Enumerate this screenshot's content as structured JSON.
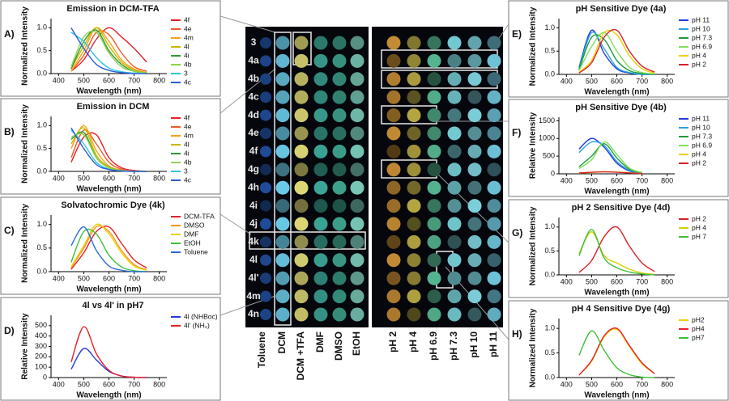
{
  "chart_data": [
    {
      "type": "line",
      "label": "A)",
      "title": "Emission in DCM-TFA",
      "xlabel": "Wavelength (nm)",
      "ylabel": "Normalized Intensity",
      "x": [
        400,
        450,
        500,
        550,
        600,
        650,
        700,
        750,
        800
      ],
      "xlim": [
        370,
        830
      ],
      "xticks": [
        400,
        500,
        600,
        700,
        800
      ],
      "ylim": [
        0,
        1.2
      ],
      "yticks": [
        {
          "value": 0,
          "label": "0.0"
        },
        0.5,
        {
          "value": 1,
          "label": "1.0"
        }
      ],
      "series": [
        {
          "name": "4f",
          "color": "#e8202a",
          "values": [
            null,
            0.05,
            0.3,
            0.75,
            1.0,
            0.8,
            0.55,
            0.25,
            null
          ]
        },
        {
          "name": "4e",
          "color": "#f05a28",
          "values": [
            null,
            0.05,
            0.4,
            0.9,
            0.85,
            0.45,
            0.15,
            0.05,
            null
          ]
        },
        {
          "name": "4m",
          "color": "#f7a21b",
          "values": [
            null,
            0.05,
            0.5,
            1.0,
            0.7,
            0.3,
            0.1,
            0.02,
            null
          ]
        },
        {
          "name": "4l",
          "color": "#c9b800",
          "values": [
            null,
            0.1,
            0.6,
            1.0,
            0.6,
            0.25,
            0.08,
            0.02,
            null
          ]
        },
        {
          "name": "4i",
          "color": "#2f9b2f",
          "values": [
            null,
            0.1,
            0.7,
            0.95,
            0.5,
            0.2,
            0.05,
            0.01,
            null
          ]
        },
        {
          "name": "4b",
          "color": "#8fd14f",
          "values": [
            null,
            0.15,
            0.8,
            0.9,
            0.45,
            0.15,
            0.05,
            0.01,
            null
          ]
        },
        {
          "name": "3",
          "color": "#2ac6d8",
          "values": [
            null,
            0.9,
            0.7,
            0.35,
            0.12,
            0.04,
            0.01,
            0,
            null
          ]
        },
        {
          "name": "4c",
          "color": "#2a5bd7",
          "values": [
            null,
            1.0,
            0.55,
            0.2,
            0.07,
            0.02,
            0,
            0,
            null
          ]
        }
      ]
    },
    {
      "type": "line",
      "label": "B)",
      "title": "Emission in DCM",
      "xlabel": "Wavelength (nm)",
      "ylabel": "Normalized Intensity",
      "x": [
        400,
        450,
        500,
        550,
        600,
        650,
        700,
        750,
        800
      ],
      "xlim": [
        370,
        830
      ],
      "xticks": [
        400,
        500,
        600,
        700,
        800
      ],
      "ylim": [
        0,
        1.2
      ],
      "yticks": [
        {
          "value": 0,
          "label": "0.0"
        },
        0.5,
        {
          "value": 1,
          "label": "1.0"
        }
      ],
      "series": [
        {
          "name": "4f",
          "color": "#e8202a",
          "values": [
            null,
            0.2,
            0.75,
            0.8,
            0.3,
            0.08,
            0.02,
            0,
            null
          ]
        },
        {
          "name": "4e",
          "color": "#f05a28",
          "values": [
            null,
            0.3,
            0.9,
            0.6,
            0.2,
            0.05,
            0.01,
            0,
            null
          ]
        },
        {
          "name": "4m",
          "color": "#f7a21b",
          "values": [
            null,
            0.5,
            1.0,
            0.45,
            0.12,
            0.03,
            0,
            0,
            null
          ]
        },
        {
          "name": "4l",
          "color": "#c9b800",
          "values": [
            null,
            0.6,
            0.95,
            0.35,
            0.1,
            0.02,
            0,
            0,
            null
          ]
        },
        {
          "name": "4i",
          "color": "#2f9b2f",
          "values": [
            null,
            0.7,
            0.85,
            0.3,
            0.08,
            0.02,
            0,
            0,
            null
          ]
        },
        {
          "name": "4b",
          "color": "#8fd14f",
          "values": [
            null,
            0.75,
            0.8,
            0.3,
            0.08,
            0.02,
            0,
            0,
            null
          ]
        },
        {
          "name": "3",
          "color": "#2ac6d8",
          "values": [
            null,
            0.9,
            0.6,
            0.2,
            0.05,
            0.01,
            0,
            0,
            null
          ]
        },
        {
          "name": "4c",
          "color": "#2a5bd7",
          "values": [
            null,
            0.95,
            0.5,
            0.15,
            0.04,
            0.01,
            0,
            0,
            null
          ]
        }
      ]
    },
    {
      "type": "line",
      "label": "C)",
      "title": "Solvatochromic Dye (4k)",
      "xlabel": "Wavelength (nm)",
      "ylabel": "Normalized Intensity",
      "x": [
        400,
        450,
        500,
        550,
        600,
        650,
        700,
        750,
        800
      ],
      "xlim": [
        370,
        830
      ],
      "xticks": [
        400,
        500,
        600,
        700,
        800
      ],
      "ylim": [
        0,
        1.2
      ],
      "yticks": [
        {
          "value": 0,
          "label": "0.0"
        },
        0.5,
        {
          "value": 1,
          "label": "1.0"
        }
      ],
      "series": [
        {
          "name": "DCM-TFA",
          "color": "#e8202a",
          "values": [
            null,
            0.05,
            0.4,
            0.85,
            0.95,
            0.6,
            0.25,
            0.08,
            null
          ]
        },
        {
          "name": "DMSO",
          "color": "#f7931e",
          "values": [
            null,
            0.08,
            0.5,
            0.95,
            0.85,
            0.45,
            0.15,
            0.04,
            null
          ]
        },
        {
          "name": "DMF",
          "color": "#e6d200",
          "values": [
            null,
            0.1,
            0.55,
            1.0,
            0.8,
            0.4,
            0.12,
            0.03,
            null
          ]
        },
        {
          "name": "EtOH",
          "color": "#3cc03c",
          "values": [
            null,
            0.2,
            0.85,
            0.8,
            0.35,
            0.1,
            0.02,
            0,
            null
          ]
        },
        {
          "name": "Toluene",
          "color": "#2a6bd7",
          "values": [
            null,
            0.55,
            0.95,
            0.45,
            0.12,
            0.03,
            0,
            0,
            null
          ]
        }
      ]
    },
    {
      "type": "line",
      "label": "D)",
      "title": "4l vs 4l' in pH7",
      "xlabel": "Wavelength (nm)",
      "ylabel": "Relative Intensity",
      "x": [
        400,
        450,
        500,
        550,
        600,
        650,
        700,
        750,
        800
      ],
      "xlim": [
        370,
        830
      ],
      "xticks": [
        400,
        500,
        600,
        700,
        800
      ],
      "ylim": [
        0,
        600
      ],
      "yticks": [
        0,
        100,
        200,
        300,
        400,
        500
      ],
      "series": [
        {
          "name": "4l (NHBoc)",
          "color": "#2a3bd7",
          "values": [
            null,
            80,
            280,
            170,
            60,
            15,
            3,
            0,
            null
          ]
        },
        {
          "name": "4l' (NH₂)",
          "color": "#e8202a",
          "values": [
            null,
            150,
            490,
            230,
            70,
            15,
            3,
            0,
            null
          ]
        }
      ]
    },
    {
      "type": "line",
      "label": "E)",
      "title": "pH Sensitive Dye (4a)",
      "xlabel": "Wavelength (nm)",
      "ylabel": "Normalized Intensity",
      "x": [
        400,
        450,
        500,
        550,
        600,
        650,
        700,
        750,
        800
      ],
      "xlim": [
        370,
        830
      ],
      "xticks": [
        400,
        500,
        600,
        700,
        800
      ],
      "ylim": [
        0,
        1.2
      ],
      "yticks": [
        {
          "value": 0,
          "label": "0.0"
        },
        0.5,
        {
          "value": 1,
          "label": "1.0"
        }
      ],
      "series": [
        {
          "name": "pH 11",
          "color": "#1f3fd7",
          "values": [
            null,
            0.15,
            0.95,
            0.45,
            0.12,
            0.03,
            0,
            0,
            null
          ]
        },
        {
          "name": "pH 10",
          "color": "#2aa0e0",
          "values": [
            null,
            0.12,
            0.9,
            0.55,
            0.15,
            0.04,
            0,
            0,
            null
          ]
        },
        {
          "name": "pH 7.3",
          "color": "#1e9b3a",
          "values": [
            null,
            0.1,
            0.8,
            0.75,
            0.3,
            0.08,
            0.02,
            0,
            null
          ]
        },
        {
          "name": "pH 6.9",
          "color": "#7ee05a",
          "values": [
            null,
            0.08,
            0.6,
            0.9,
            0.5,
            0.15,
            0.04,
            0.01,
            null
          ]
        },
        {
          "name": "pH 4",
          "color": "#f0d000",
          "values": [
            null,
            0.04,
            0.3,
            0.9,
            0.85,
            0.4,
            0.12,
            0.03,
            null
          ]
        },
        {
          "name": "pH 2",
          "color": "#d8202a",
          "values": [
            null,
            0.03,
            0.25,
            0.8,
            0.95,
            0.5,
            0.18,
            0.05,
            null
          ]
        }
      ]
    },
    {
      "type": "line",
      "label": "F)",
      "title": "pH Sensitive Dye (4b)",
      "xlabel": "Wavelength (nm)",
      "ylabel": "Relative Intensity",
      "x": [
        400,
        450,
        500,
        550,
        600,
        650,
        700,
        750,
        800
      ],
      "xlim": [
        370,
        830
      ],
      "xticks": [
        400,
        500,
        600,
        700,
        800
      ],
      "ylim": [
        0,
        1600
      ],
      "yticks": [
        0,
        500,
        1000,
        1500
      ],
      "series": [
        {
          "name": "pH 11",
          "color": "#1f3fd7",
          "values": [
            null,
            700,
            1000,
            750,
            300,
            80,
            15,
            null,
            null
          ]
        },
        {
          "name": "pH 10",
          "color": "#2aa0e0",
          "values": [
            null,
            600,
            900,
            800,
            350,
            100,
            20,
            null,
            null
          ]
        },
        {
          "name": "pH 7.3",
          "color": "#1e9b3a",
          "values": [
            null,
            200,
            500,
            850,
            450,
            130,
            30,
            null,
            null
          ]
        },
        {
          "name": "pH 6.9",
          "color": "#7ee05a",
          "values": [
            null,
            150,
            400,
            900,
            550,
            160,
            40,
            null,
            null
          ]
        },
        {
          "name": "pH 4",
          "color": "#f0d000",
          "values": [
            null,
            20,
            40,
            60,
            50,
            30,
            10,
            null,
            null
          ]
        },
        {
          "name": "pH 2",
          "color": "#d8202a",
          "values": [
            null,
            25,
            45,
            55,
            45,
            25,
            8,
            null,
            null
          ]
        }
      ]
    },
    {
      "type": "line",
      "label": "G)",
      "title": "pH 2 Sensitive Dye (4d)",
      "xlabel": "Wavelength (nm)",
      "ylabel": "Normalized Intensity",
      "x": [
        400,
        450,
        500,
        550,
        600,
        650,
        700,
        750,
        800
      ],
      "xlim": [
        370,
        830
      ],
      "xticks": [
        400,
        500,
        600,
        700,
        800
      ],
      "ylim": [
        0,
        1.2
      ],
      "yticks": [
        {
          "value": 0,
          "label": "0.0"
        },
        0.5,
        {
          "value": 1,
          "label": "1.0"
        }
      ],
      "series": [
        {
          "name": "pH 2",
          "color": "#d8202a",
          "values": [
            null,
            0.05,
            0.3,
            0.8,
            1.0,
            0.6,
            0.25,
            0.07,
            null
          ]
        },
        {
          "name": "pH 4",
          "color": "#d8d000",
          "values": [
            null,
            0.45,
            0.9,
            0.4,
            0.25,
            0.12,
            0.04,
            0.01,
            null
          ]
        },
        {
          "name": "pH 7",
          "color": "#3cc03c",
          "values": [
            null,
            0.4,
            0.95,
            0.35,
            0.15,
            0.06,
            0.02,
            0,
            null
          ]
        }
      ]
    },
    {
      "type": "line",
      "label": "H)",
      "title": "pH 4 Sensitive Dye (4g)",
      "xlabel": "Wavelength (nm)",
      "ylabel": "Normalized Intensity",
      "x": [
        400,
        450,
        500,
        550,
        600,
        650,
        700,
        750,
        800
      ],
      "xlim": [
        370,
        830
      ],
      "xticks": [
        400,
        500,
        600,
        700,
        800
      ],
      "ylim": [
        0,
        1.2
      ],
      "yticks": [
        {
          "value": 0,
          "label": "0.0"
        },
        0.5,
        {
          "value": 1,
          "label": "1.0"
        }
      ],
      "series": [
        {
          "name": "pH2",
          "color": "#f0d000",
          "values": [
            null,
            0.05,
            0.33,
            0.83,
            0.98,
            0.63,
            0.28,
            0.08,
            null
          ]
        },
        {
          "name": "pH4",
          "color": "#e8202a",
          "values": [
            null,
            0.05,
            0.35,
            0.85,
            1.0,
            0.65,
            0.3,
            0.08,
            null
          ]
        },
        {
          "name": "pH7",
          "color": "#3cc03c",
          "values": [
            null,
            0.45,
            0.95,
            0.55,
            0.2,
            0.06,
            0.01,
            0,
            null
          ]
        }
      ]
    }
  ],
  "plate": {
    "rows": [
      "3",
      "4a",
      "4b",
      "4c",
      "4d",
      "4e",
      "4f",
      "4g",
      "4h",
      "4i",
      "4j",
      "4k",
      "4l",
      "4l'",
      "4m",
      "4n"
    ],
    "solvents": [
      "Toluene",
      "DCM",
      "DCM +TFA",
      "DMF",
      "DMSO",
      "EtOH"
    ],
    "ph": [
      "pH 2",
      "pH 4",
      "pH 6.9",
      "pH 7.3",
      "pH 10",
      "pH 11"
    ]
  }
}
